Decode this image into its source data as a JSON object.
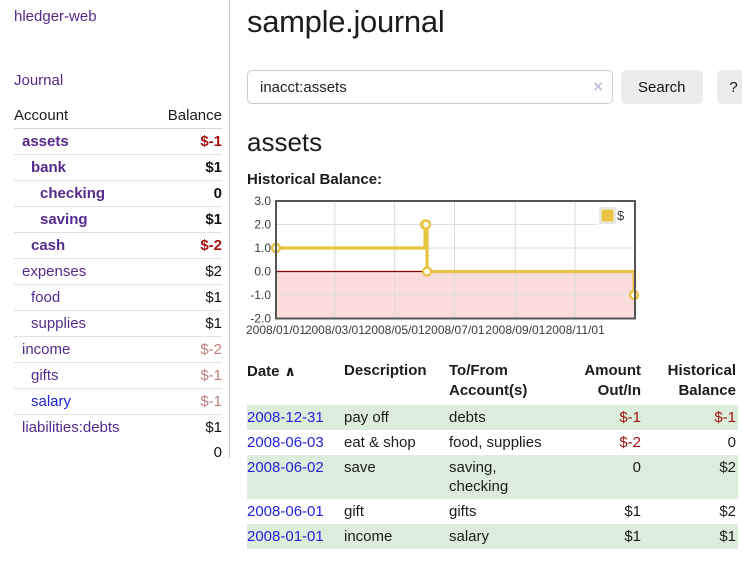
{
  "app": {
    "brand": "hledger-web"
  },
  "sidebar": {
    "journal_link": "Journal",
    "accounts": {
      "header_account": "Account",
      "header_balance": "Balance",
      "rows": [
        {
          "name": "assets",
          "depth": 0,
          "bold": true,
          "balance": "$-1",
          "tone": "neg"
        },
        {
          "name": "bank",
          "depth": 1,
          "bold": true,
          "balance": "$1",
          "tone": "pos"
        },
        {
          "name": "checking",
          "depth": 2,
          "bold": true,
          "balance": "0",
          "tone": "pos"
        },
        {
          "name": "saving",
          "depth": 2,
          "bold": true,
          "balance": "$1",
          "tone": "pos"
        },
        {
          "name": "cash",
          "depth": 1,
          "bold": true,
          "balance": "$-2",
          "tone": "neg"
        },
        {
          "name": "expenses",
          "depth": 0,
          "bold": false,
          "balance": "$2",
          "tone": "pos"
        },
        {
          "name": "food",
          "depth": 1,
          "bold": false,
          "balance": "$1",
          "tone": "pos"
        },
        {
          "name": "supplies",
          "depth": 1,
          "bold": false,
          "balance": "$1",
          "tone": "pos"
        },
        {
          "name": "income",
          "depth": 0,
          "bold": false,
          "balance": "$-2",
          "tone": "negsoft"
        },
        {
          "name": "gifts",
          "depth": 1,
          "bold": false,
          "balance": "$-1",
          "tone": "negsoft"
        },
        {
          "name": "salary",
          "depth": 1,
          "bold": false,
          "balance": "$-1",
          "tone": "negsoft",
          "link_tone": "blue"
        },
        {
          "name": "liabilities:debts",
          "depth": 0,
          "bold": false,
          "balance": "$1",
          "tone": "pos"
        }
      ],
      "total": "0"
    }
  },
  "main": {
    "title": "sample.journal",
    "search": {
      "value": "inacct:assets",
      "clear_icon": "×",
      "search_button": "Search",
      "help_button": "?"
    },
    "account_heading": "assets",
    "chart_title": "Historical Balance:"
  },
  "chart_data": {
    "type": "line",
    "style": "step",
    "title": "Historical Balance",
    "series": [
      {
        "name": "$",
        "color": "#e9c342",
        "points": [
          [
            "2008-01-01",
            1.0
          ],
          [
            "2008-06-01",
            2.0
          ],
          [
            "2008-06-02",
            2.0
          ],
          [
            "2008-06-03",
            0.0
          ],
          [
            "2008-12-31",
            -1.0
          ]
        ]
      }
    ],
    "x_range": [
      "2008-01-01",
      "2009-01-01"
    ],
    "ylim": [
      -2,
      3
    ],
    "y_ticks": [
      "3.0",
      "2.0",
      "1.0",
      "0.0",
      "-1.0",
      "-2.0"
    ],
    "y_tick_values": [
      3,
      2,
      1,
      0,
      -1,
      -2
    ],
    "x_ticks": [
      {
        "label": "2008/01/01",
        "date": "2008-01-01"
      },
      {
        "label": "2008/03/01",
        "date": "2008-03-01"
      },
      {
        "label": "2008/05/01",
        "date": "2008-05-01"
      },
      {
        "label": "2008/07/01",
        "date": "2008-07-01"
      },
      {
        "label": "2008/09/01",
        "date": "2008-09-01"
      },
      {
        "label": "2008/11/01",
        "date": "2008-11-01"
      }
    ],
    "grid": true,
    "legend": {
      "label": "$",
      "position": "top-right"
    },
    "negative_region": {
      "from": 0,
      "to": -2,
      "color": "#fbdcdc"
    },
    "zero_line_color": "#8b0000",
    "grid_color": "#dcdcdc",
    "border_color": "#545454"
  },
  "register": {
    "headers": {
      "date": "Date",
      "date_sort_icon": "∧",
      "description": "Description",
      "accounts": "To/From Account(s)",
      "amount": "Amount Out/In",
      "balance": "Historical Balance"
    },
    "rows": [
      {
        "date": "2008-12-31",
        "description": "pay off",
        "accounts": "debts",
        "amount": "$-1",
        "amount_tone": "neg",
        "balance": "$-1",
        "balance_tone": "neg",
        "shaded": true
      },
      {
        "date": "2008-06-03",
        "description": "eat & shop",
        "accounts": "food, supplies",
        "amount": "$-2",
        "amount_tone": "neg",
        "balance": "0",
        "balance_tone": "pos",
        "shaded": false
      },
      {
        "date": "2008-06-02",
        "description": "save",
        "accounts": "saving, checking",
        "amount": "0",
        "amount_tone": "pos",
        "balance": "$2",
        "balance_tone": "pos",
        "shaded": true
      },
      {
        "date": "2008-06-01",
        "description": "gift",
        "accounts": "gifts",
        "amount": "$1",
        "amount_tone": "pos",
        "balance": "$2",
        "balance_tone": "pos",
        "shaded": false
      },
      {
        "date": "2008-01-01",
        "description": "income",
        "accounts": "salary",
        "amount": "$1",
        "amount_tone": "pos",
        "balance": "$1",
        "balance_tone": "pos",
        "shaded": true
      }
    ]
  },
  "colors": {
    "link_purple": "#552b8c",
    "link_blue": "#2222dd",
    "negative_dark_red": "#a31111",
    "negative_soft_red": "#bf7e7e",
    "shaded_row_green": "#dceddb",
    "chart_line_yellow": "#e9c342",
    "chart_negative_fill": "#fbdcdc",
    "chart_zero_line": "#8b0000"
  }
}
